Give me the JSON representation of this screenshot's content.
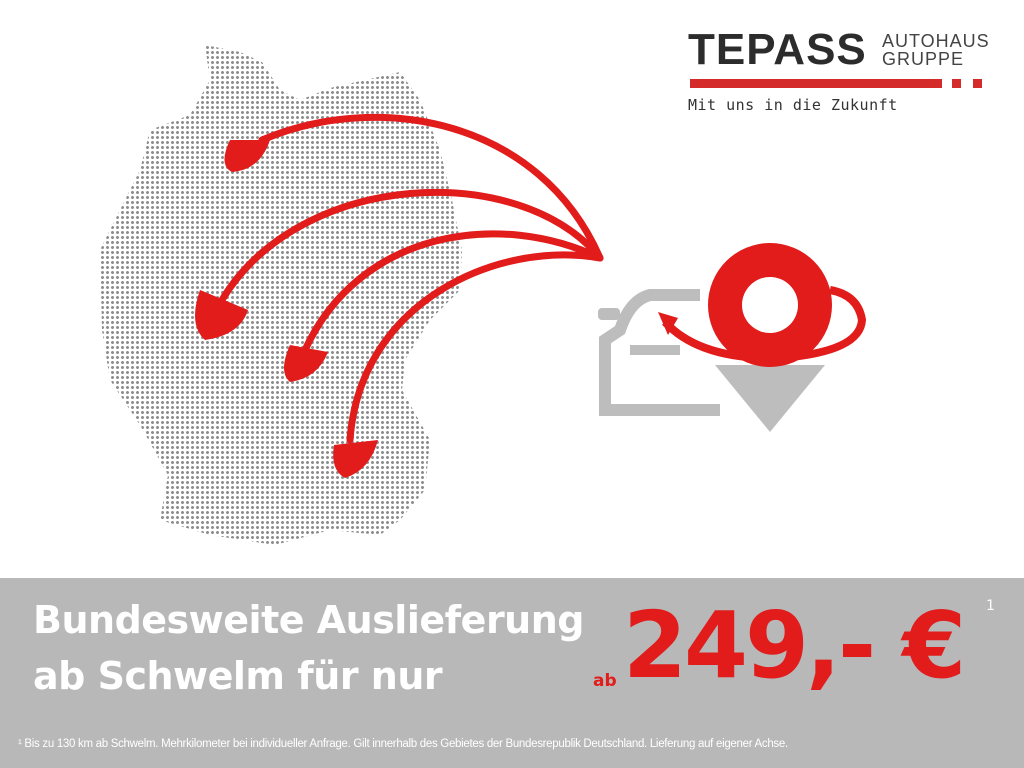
{
  "logo": {
    "name": "TEPASS",
    "sub1": "AUTOHAUS",
    "sub2": "GRUPPE",
    "tagline": "Mit uns in die Zukunft",
    "color": "#d42a2a"
  },
  "graphic": {
    "map_icon": "germany-dotted-map",
    "arrow_icon": "red-arrows",
    "car_icon": "car-icon",
    "pin_icon": "location-pin-icon"
  },
  "banner": {
    "line1": "Bundesweite Auslieferung",
    "line2": "ab Schwelm für nur",
    "price_prefix": "ab",
    "price": "249,- €",
    "footnote_mark": "1",
    "footnote": "¹ Bis zu 130 km ab Schwelm. Mehrkilometer bei individueller Anfrage. Gilt innerhalb des Gebietes der Bundesrepublik Deutschland. Lieferung auf eigener Achse.",
    "price_color": "#e21b1b",
    "background": "#b8b8b9"
  }
}
